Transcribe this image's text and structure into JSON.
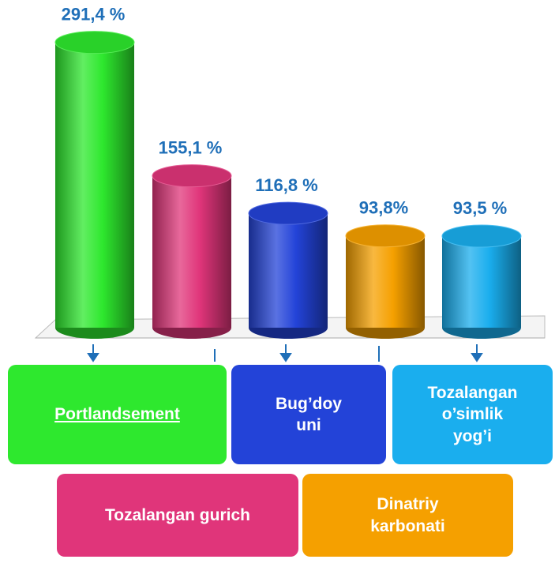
{
  "chart_data": {
    "type": "bar",
    "categories": [
      "Portlandsement",
      "Tozalangan gurich",
      "Bug’doy uni",
      "Dinatriy karbonati",
      "Tozalangan o’simlik yog’i"
    ],
    "values": [
      291.4,
      155.1,
      116.8,
      93.8,
      93.5
    ],
    "value_labels": [
      "291,4 %",
      "155,1 %",
      "116,8 %",
      "93,8%",
      "93,5 %"
    ],
    "colors": [
      "#2ee82e",
      "#e0357a",
      "#2343d8",
      "#f5a000",
      "#1aaeee"
    ]
  }
}
